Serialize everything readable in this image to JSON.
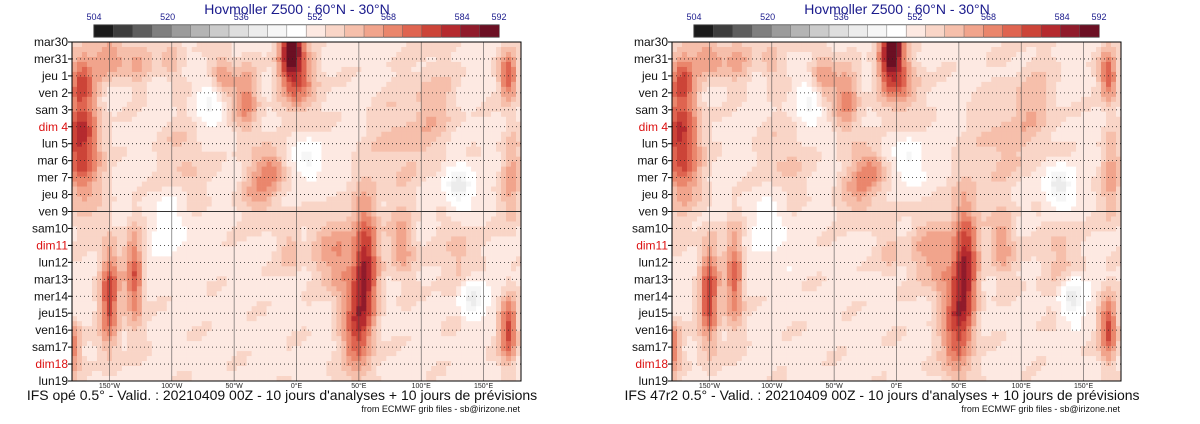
{
  "palette": [
    "#1b1b1b",
    "#3d3d3d",
    "#5e5e5e",
    "#7f7f7f",
    "#9b9b9b",
    "#b4b4b4",
    "#cbcbcb",
    "#dedede",
    "#ececec",
    "#f6f6f6",
    "#ffffff",
    "#fde9e2",
    "#f9d5c7",
    "#f6bfab",
    "#f1a48c",
    "#ea866c",
    "#df6450",
    "#cc4438",
    "#b52a2e",
    "#901b2b",
    "#6b0f23"
  ],
  "chart_data": [
    {
      "type": "heatmap",
      "title": "Hovmoller Z500 : 60°N - 30°N",
      "colorbar_ticks": [
        "504",
        "520",
        "536",
        "552",
        "568",
        "584",
        "592"
      ],
      "color_range": [
        504,
        592
      ],
      "days": [
        "mar30",
        "mer31",
        "jeu 1",
        "ven 2",
        "sam 3",
        "dim 4",
        "lun 5",
        "mar 6",
        "mer 7",
        "jeu 8",
        "ven 9",
        "sam10",
        "dim11",
        "lun12",
        "mar13",
        "mer14",
        "jeu15",
        "ven16",
        "sam17",
        "dim18",
        "lun19"
      ],
      "sundays": [
        "dim 4",
        "dim11",
        "dim18"
      ],
      "analysis_end": "ven 9",
      "lon_ticks": [
        "150°W",
        "100°W",
        "50°W",
        "0°E",
        "50°E",
        "100°E",
        "150°E"
      ],
      "lon_tick_values": [
        -150,
        -100,
        -50,
        0,
        50,
        100,
        150
      ],
      "lon_range": [
        -180,
        180
      ],
      "footer": "IFS opé 0.5° - Valid. : 20210409 00Z - 10 jours d'analyses + 10 jours de prévisions",
      "credit": "from ECMWF grib files - sb@irizone.net"
    },
    {
      "type": "heatmap",
      "title": "Hovmoller Z500 : 60°N - 30°N",
      "colorbar_ticks": [
        "504",
        "520",
        "536",
        "552",
        "568",
        "584",
        "592"
      ],
      "color_range": [
        504,
        592
      ],
      "days": [
        "mar30",
        "mer31",
        "jeu 1",
        "ven 2",
        "sam 3",
        "dim 4",
        "lun 5",
        "mar 6",
        "mer 7",
        "jeu 8",
        "ven 9",
        "sam10",
        "dim11",
        "lun12",
        "mar13",
        "mer14",
        "jeu15",
        "ven16",
        "sam17",
        "dim18",
        "lun19"
      ],
      "sundays": [
        "dim 4",
        "dim11",
        "dim18"
      ],
      "analysis_end": "ven 9",
      "lon_ticks": [
        "150°W",
        "100°W",
        "50°W",
        "0°E",
        "50°E",
        "100°E",
        "150°E"
      ],
      "lon_tick_values": [
        -150,
        -100,
        -50,
        0,
        50,
        100,
        150
      ],
      "lon_range": [
        -180,
        180
      ],
      "footer": "IFS 47r2 0.5° - Valid. : 20210409 00Z - 10 jours d'analyses + 10 jours de prévisions",
      "credit": "from ECMWF grib files - sb@irizone.net"
    }
  ]
}
